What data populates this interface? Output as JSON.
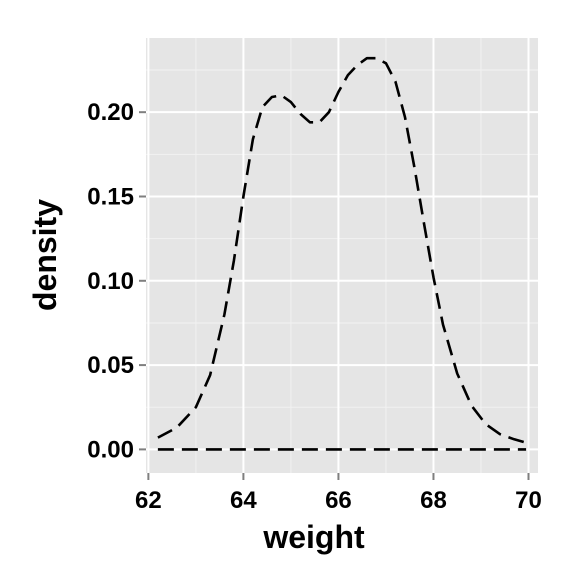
{
  "chart_data": {
    "type": "area",
    "xlabel": "weight",
    "ylabel": "density",
    "xlim": [
      61.95,
      70.2
    ],
    "ylim": [
      -0.014,
      0.244
    ],
    "x_ticks": [
      62,
      64,
      66,
      68,
      70
    ],
    "x_tick_labels": [
      "62",
      "64",
      "66",
      "68",
      "70"
    ],
    "y_ticks": [
      0.0,
      0.05,
      0.1,
      0.15,
      0.2
    ],
    "y_tick_labels": [
      "0.00",
      "0.05",
      "0.10",
      "0.15",
      "0.20"
    ],
    "grid": true,
    "legend": "none",
    "series": [
      {
        "line_style": "dashed",
        "fill": "none",
        "x": [
          62.2,
          62.6,
          63.0,
          63.3,
          63.6,
          63.8,
          64.0,
          64.2,
          64.4,
          64.6,
          64.8,
          65.0,
          65.2,
          65.4,
          65.6,
          65.8,
          66.0,
          66.2,
          66.4,
          66.6,
          66.8,
          67.0,
          67.2,
          67.4,
          67.6,
          67.8,
          68.0,
          68.2,
          68.5,
          68.8,
          69.1,
          69.4,
          69.7,
          69.95
        ],
        "y": [
          0.007,
          0.013,
          0.025,
          0.044,
          0.08,
          0.112,
          0.15,
          0.184,
          0.203,
          0.209,
          0.21,
          0.206,
          0.199,
          0.194,
          0.194,
          0.2,
          0.212,
          0.222,
          0.228,
          0.232,
          0.232,
          0.229,
          0.218,
          0.197,
          0.167,
          0.134,
          0.102,
          0.074,
          0.045,
          0.026,
          0.015,
          0.009,
          0.006,
          0.004
        ]
      }
    ],
    "baseline": {
      "y": 0.0,
      "x_range": [
        62.2,
        69.95
      ],
      "line_style": "dashed"
    }
  },
  "colors": {
    "panel_background": "#e5e5e5",
    "grid_major": "#ffffff",
    "grid_minor": "#f2f2f2",
    "line": "#000000",
    "text": "#000000"
  }
}
